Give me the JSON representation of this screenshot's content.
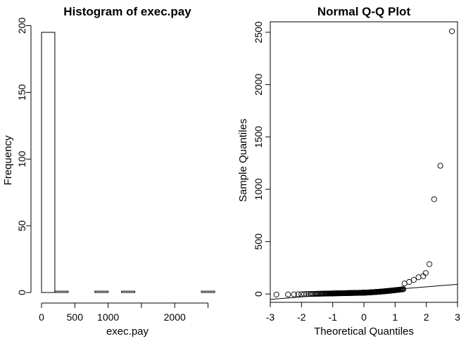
{
  "chart_data": [
    {
      "type": "bar",
      "title": "Histogram of exec.pay",
      "xlabel": "exec.pay",
      "ylabel": "Frequency",
      "bin_width": 200,
      "bins": [
        {
          "start": 0,
          "end": 200,
          "count": 195
        },
        {
          "start": 200,
          "end": 400,
          "count": 1
        },
        {
          "start": 400,
          "end": 600,
          "count": 0
        },
        {
          "start": 600,
          "end": 800,
          "count": 0
        },
        {
          "start": 800,
          "end": 1000,
          "count": 1
        },
        {
          "start": 1000,
          "end": 1200,
          "count": 0
        },
        {
          "start": 1200,
          "end": 1400,
          "count": 1
        },
        {
          "start": 1400,
          "end": 1600,
          "count": 0
        },
        {
          "start": 1600,
          "end": 1800,
          "count": 0
        },
        {
          "start": 1800,
          "end": 2000,
          "count": 0
        },
        {
          "start": 2000,
          "end": 2200,
          "count": 0
        },
        {
          "start": 2200,
          "end": 2400,
          "count": 0
        },
        {
          "start": 2400,
          "end": 2600,
          "count": 1
        }
      ],
      "xlim": [
        0,
        2600
      ],
      "ylim": [
        0,
        200
      ],
      "x_ticks": [
        0,
        500,
        1000,
        1500,
        2000,
        2500
      ],
      "x_tick_labels": [
        "0",
        "500",
        "1000",
        "",
        "2000",
        ""
      ],
      "y_ticks": [
        0,
        50,
        100,
        150,
        200
      ],
      "y_tick_labels": [
        "0",
        "50",
        "100",
        "150",
        "200"
      ],
      "grid": false
    },
    {
      "type": "scatter",
      "title": "Normal Q-Q Plot",
      "xlabel": "Theoretical Quantiles",
      "ylabel": "Sample Quantiles",
      "xlim": [
        -3,
        3
      ],
      "ylim": [
        -80,
        2600
      ],
      "x_ticks": [
        -3,
        -2,
        -1,
        0,
        1,
        2,
        3
      ],
      "x_tick_labels": [
        "-3",
        "-2",
        "-1",
        "0",
        "1",
        "2",
        "3"
      ],
      "y_ticks": [
        0,
        500,
        1000,
        1500,
        2000,
        2500
      ],
      "y_tick_labels": [
        "0",
        "500",
        "1000",
        "1500",
        "2000",
        "2500"
      ],
      "n_points": 199,
      "upper_tail": [
        {
          "x": 1.3,
          "y": 100
        },
        {
          "x": 1.45,
          "y": 115
        },
        {
          "x": 1.6,
          "y": 135
        },
        {
          "x": 1.75,
          "y": 160
        },
        {
          "x": 1.9,
          "y": 170
        },
        {
          "x": 1.98,
          "y": 200
        },
        {
          "x": 2.1,
          "y": 285
        },
        {
          "x": 2.25,
          "y": 905
        },
        {
          "x": 2.45,
          "y": 1225
        },
        {
          "x": 2.82,
          "y": 2510
        }
      ],
      "reference_line": {
        "intercept": 20,
        "slope": 24
      },
      "grid": false
    }
  ]
}
